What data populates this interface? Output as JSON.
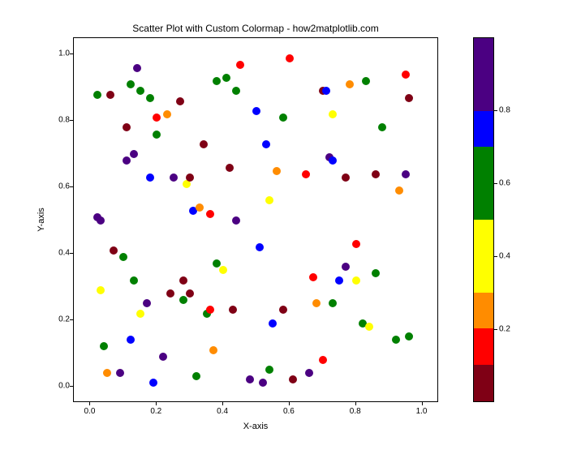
{
  "chart": {
    "type": "scatter",
    "title": "Scatter Plot with Custom Colormap - how2matplotlib.com",
    "title_fontsize": 12,
    "xlabel": "X-axis",
    "ylabel": "Y-axis",
    "label_fontsize": 11,
    "background_color": "#ffffff",
    "border_color": "#000000",
    "tick_fontsize": 10,
    "xlim": [
      -0.05,
      1.05
    ],
    "ylim": [
      -0.05,
      1.05
    ],
    "xticks": [
      0.0,
      0.2,
      0.4,
      0.6,
      0.8,
      1.0
    ],
    "yticks": [
      0.0,
      0.2,
      0.4,
      0.6,
      0.8,
      1.0
    ],
    "xtick_labels": [
      "0.0",
      "0.2",
      "0.4",
      "0.6",
      "0.8",
      "1.0"
    ],
    "ytick_labels": [
      "0.0",
      "0.2",
      "0.4",
      "0.6",
      "0.8",
      "1.0"
    ],
    "marker_size": 10,
    "colormap": [
      "#7f0015",
      "#ff0000",
      "#ff8c00",
      "#ffff00",
      "#ffff00",
      "#008000",
      "#008000",
      "#0000ff",
      "#4b0082",
      "#4b0082"
    ],
    "colorbar_ticks": [
      0.2,
      0.4,
      0.6,
      0.8
    ],
    "colorbar_labels": [
      "0.2",
      "0.4",
      "0.6",
      "0.8"
    ],
    "points": [
      {
        "x": 0.02,
        "y": 0.88,
        "c": "#008000"
      },
      {
        "x": 0.02,
        "y": 0.51,
        "c": "#4b0082"
      },
      {
        "x": 0.03,
        "y": 0.29,
        "c": "#ffff00"
      },
      {
        "x": 0.03,
        "y": 0.5,
        "c": "#4b0082"
      },
      {
        "x": 0.04,
        "y": 0.12,
        "c": "#008000"
      },
      {
        "x": 0.05,
        "y": 0.04,
        "c": "#ff8c00"
      },
      {
        "x": 0.06,
        "y": 0.88,
        "c": "#7f0015"
      },
      {
        "x": 0.07,
        "y": 0.41,
        "c": "#7f0015"
      },
      {
        "x": 0.09,
        "y": 0.04,
        "c": "#4b0082"
      },
      {
        "x": 0.1,
        "y": 0.39,
        "c": "#008000"
      },
      {
        "x": 0.11,
        "y": 0.68,
        "c": "#4b0082"
      },
      {
        "x": 0.11,
        "y": 0.78,
        "c": "#7f0015"
      },
      {
        "x": 0.12,
        "y": 0.14,
        "c": "#0000ff"
      },
      {
        "x": 0.12,
        "y": 0.91,
        "c": "#008000"
      },
      {
        "x": 0.13,
        "y": 0.7,
        "c": "#4b0082"
      },
      {
        "x": 0.13,
        "y": 0.32,
        "c": "#008000"
      },
      {
        "x": 0.14,
        "y": 0.96,
        "c": "#4b0082"
      },
      {
        "x": 0.15,
        "y": 0.89,
        "c": "#008000"
      },
      {
        "x": 0.15,
        "y": 0.22,
        "c": "#ffff00"
      },
      {
        "x": 0.17,
        "y": 0.25,
        "c": "#4b0082"
      },
      {
        "x": 0.18,
        "y": 0.87,
        "c": "#008000"
      },
      {
        "x": 0.18,
        "y": 0.63,
        "c": "#0000ff"
      },
      {
        "x": 0.19,
        "y": 0.01,
        "c": "#0000ff"
      },
      {
        "x": 0.2,
        "y": 0.81,
        "c": "#ff0000"
      },
      {
        "x": 0.2,
        "y": 0.76,
        "c": "#008000"
      },
      {
        "x": 0.22,
        "y": 0.09,
        "c": "#4b0082"
      },
      {
        "x": 0.23,
        "y": 0.82,
        "c": "#ff8c00"
      },
      {
        "x": 0.24,
        "y": 0.28,
        "c": "#7f0015"
      },
      {
        "x": 0.25,
        "y": 0.63,
        "c": "#4b0082"
      },
      {
        "x": 0.27,
        "y": 0.86,
        "c": "#7f0015"
      },
      {
        "x": 0.28,
        "y": 0.32,
        "c": "#7f0015"
      },
      {
        "x": 0.28,
        "y": 0.26,
        "c": "#008000"
      },
      {
        "x": 0.29,
        "y": 0.61,
        "c": "#ffff00"
      },
      {
        "x": 0.3,
        "y": 0.28,
        "c": "#7f0015"
      },
      {
        "x": 0.3,
        "y": 0.63,
        "c": "#7f0015"
      },
      {
        "x": 0.31,
        "y": 0.53,
        "c": "#0000ff"
      },
      {
        "x": 0.32,
        "y": 0.03,
        "c": "#008000"
      },
      {
        "x": 0.33,
        "y": 0.54,
        "c": "#ff8c00"
      },
      {
        "x": 0.34,
        "y": 0.73,
        "c": "#7f0015"
      },
      {
        "x": 0.35,
        "y": 0.22,
        "c": "#008000"
      },
      {
        "x": 0.36,
        "y": 0.23,
        "c": "#ff0000"
      },
      {
        "x": 0.36,
        "y": 0.52,
        "c": "#ff0000"
      },
      {
        "x": 0.37,
        "y": 0.11,
        "c": "#ff8c00"
      },
      {
        "x": 0.38,
        "y": 0.92,
        "c": "#008000"
      },
      {
        "x": 0.38,
        "y": 0.37,
        "c": "#008000"
      },
      {
        "x": 0.4,
        "y": 0.35,
        "c": "#ffff00"
      },
      {
        "x": 0.41,
        "y": 0.93,
        "c": "#008000"
      },
      {
        "x": 0.42,
        "y": 0.66,
        "c": "#7f0015"
      },
      {
        "x": 0.43,
        "y": 0.23,
        "c": "#7f0015"
      },
      {
        "x": 0.44,
        "y": 0.89,
        "c": "#008000"
      },
      {
        "x": 0.44,
        "y": 0.5,
        "c": "#4b0082"
      },
      {
        "x": 0.45,
        "y": 0.97,
        "c": "#ff0000"
      },
      {
        "x": 0.48,
        "y": 0.02,
        "c": "#4b0082"
      },
      {
        "x": 0.5,
        "y": 0.83,
        "c": "#0000ff"
      },
      {
        "x": 0.51,
        "y": 0.42,
        "c": "#0000ff"
      },
      {
        "x": 0.52,
        "y": 0.01,
        "c": "#4b0082"
      },
      {
        "x": 0.53,
        "y": 0.73,
        "c": "#0000ff"
      },
      {
        "x": 0.54,
        "y": 0.05,
        "c": "#008000"
      },
      {
        "x": 0.54,
        "y": 0.56,
        "c": "#ffff00"
      },
      {
        "x": 0.55,
        "y": 0.19,
        "c": "#0000ff"
      },
      {
        "x": 0.56,
        "y": 0.65,
        "c": "#ff8c00"
      },
      {
        "x": 0.58,
        "y": 0.23,
        "c": "#7f0015"
      },
      {
        "x": 0.58,
        "y": 0.81,
        "c": "#008000"
      },
      {
        "x": 0.6,
        "y": 0.99,
        "c": "#ff0000"
      },
      {
        "x": 0.61,
        "y": 0.02,
        "c": "#7f0015"
      },
      {
        "x": 0.65,
        "y": 0.64,
        "c": "#ff0000"
      },
      {
        "x": 0.66,
        "y": 0.04,
        "c": "#4b0082"
      },
      {
        "x": 0.67,
        "y": 0.33,
        "c": "#ff0000"
      },
      {
        "x": 0.68,
        "y": 0.25,
        "c": "#ff8c00"
      },
      {
        "x": 0.7,
        "y": 0.89,
        "c": "#7f0015"
      },
      {
        "x": 0.7,
        "y": 0.08,
        "c": "#ff0000"
      },
      {
        "x": 0.71,
        "y": 0.89,
        "c": "#0000ff"
      },
      {
        "x": 0.72,
        "y": 0.69,
        "c": "#4b0082"
      },
      {
        "x": 0.73,
        "y": 0.82,
        "c": "#ffff00"
      },
      {
        "x": 0.73,
        "y": 0.68,
        "c": "#0000ff"
      },
      {
        "x": 0.73,
        "y": 0.25,
        "c": "#008000"
      },
      {
        "x": 0.75,
        "y": 0.32,
        "c": "#0000ff"
      },
      {
        "x": 0.77,
        "y": 0.36,
        "c": "#4b0082"
      },
      {
        "x": 0.77,
        "y": 0.63,
        "c": "#7f0015"
      },
      {
        "x": 0.78,
        "y": 0.91,
        "c": "#ff8c00"
      },
      {
        "x": 0.8,
        "y": 0.43,
        "c": "#ff0000"
      },
      {
        "x": 0.8,
        "y": 0.32,
        "c": "#ffff00"
      },
      {
        "x": 0.82,
        "y": 0.19,
        "c": "#008000"
      },
      {
        "x": 0.83,
        "y": 0.92,
        "c": "#008000"
      },
      {
        "x": 0.84,
        "y": 0.18,
        "c": "#ffff00"
      },
      {
        "x": 0.86,
        "y": 0.34,
        "c": "#008000"
      },
      {
        "x": 0.86,
        "y": 0.64,
        "c": "#7f0015"
      },
      {
        "x": 0.88,
        "y": 0.78,
        "c": "#008000"
      },
      {
        "x": 0.92,
        "y": 0.14,
        "c": "#008000"
      },
      {
        "x": 0.93,
        "y": 0.59,
        "c": "#ff8c00"
      },
      {
        "x": 0.95,
        "y": 0.64,
        "c": "#4b0082"
      },
      {
        "x": 0.95,
        "y": 0.94,
        "c": "#ff0000"
      },
      {
        "x": 0.96,
        "y": 0.15,
        "c": "#008000"
      },
      {
        "x": 0.96,
        "y": 0.87,
        "c": "#7f0015"
      }
    ]
  }
}
